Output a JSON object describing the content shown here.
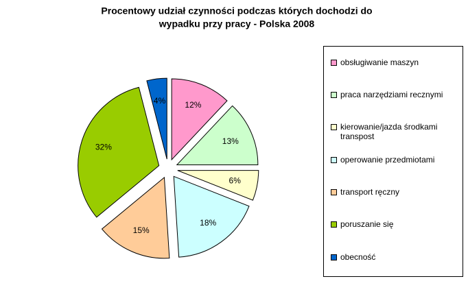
{
  "chart_data": {
    "type": "pie",
    "title": [
      "Procentowy udział czynności podczas których dochodzi do",
      "wypadku przy pracy - Polska 2008"
    ],
    "categories": [
      "obsługiwanie maszyn",
      "praca narzędziami recznymi",
      "kierowanie/jazda środkami transpost",
      "operowanie przedmiotami",
      "transport ręczny",
      "poruszanie się",
      "obecność"
    ],
    "values": [
      12,
      13,
      6,
      18,
      15,
      32,
      4
    ],
    "value_labels": [
      "12%",
      "13%",
      "6%",
      "18%",
      "15%",
      "32%",
      "4%"
    ],
    "colors": [
      "#ff99cc",
      "#ccffcc",
      "#ffffcc",
      "#ccffff",
      "#ffcc99",
      "#99cc00",
      "#0066cc"
    ],
    "legend": "right"
  }
}
